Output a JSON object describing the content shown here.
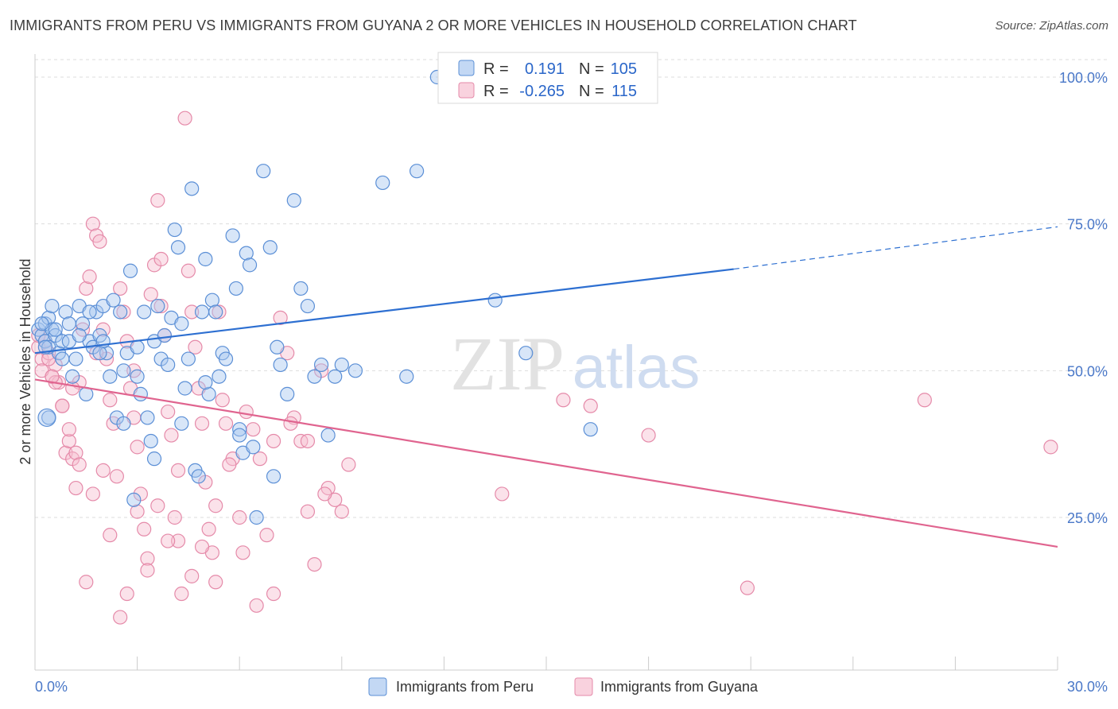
{
  "title": "IMMIGRANTS FROM PERU VS IMMIGRANTS FROM GUYANA 2 OR MORE VEHICLES IN HOUSEHOLD CORRELATION CHART",
  "source": "Source: ZipAtlas.com",
  "watermark": {
    "zip": "ZIP",
    "atlas": "atlas"
  },
  "colors": {
    "peru_fill": "#a9c7ef",
    "peru_stroke": "#5b8fd6",
    "peru_line": "#2d6fd1",
    "guyana_fill": "#f6bfd0",
    "guyana_stroke": "#e58aa9",
    "guyana_line": "#e0648f",
    "grid": "#dddddd",
    "tick_text": "#4a78c8"
  },
  "legend": {
    "rows": [
      {
        "r_label": "R =",
        "r_value": "0.191",
        "n_label": "N =",
        "n_value": "105",
        "series": "peru"
      },
      {
        "r_label": "R =",
        "r_value": "-0.265",
        "n_label": "N =",
        "n_value": "115",
        "series": "guyana"
      }
    ]
  },
  "chart_data": {
    "type": "scatter",
    "title": "IMMIGRANTS FROM PERU VS IMMIGRANTS FROM GUYANA 2 OR MORE VEHICLES IN HOUSEHOLD CORRELATION CHART",
    "xlabel": "",
    "ylabel": "2 or more Vehicles in Household",
    "xlim": [
      0,
      30
    ],
    "ylim": [
      0,
      105
    ],
    "x_tick_labels": [
      "0.0%",
      "30.0%"
    ],
    "y_ticks": [
      25,
      50,
      75,
      100
    ],
    "y_tick_labels": [
      "25.0%",
      "50.0%",
      "75.0%",
      "100.0%"
    ],
    "grid": true,
    "legend_placement": "top-center",
    "series": [
      {
        "name": "Immigrants from Peru",
        "color": "#5b8fd6",
        "trend": {
          "x0": 0,
          "y0": 53.0,
          "x1": 20.5,
          "y1": 67.3,
          "dashed_to_x": 30,
          "dashed_to_y": 74.5
        },
        "points": [
          [
            0.1,
            57
          ],
          [
            0.2,
            56
          ],
          [
            0.3,
            58
          ],
          [
            0.3,
            55
          ],
          [
            0.4,
            54
          ],
          [
            0.4,
            59
          ],
          [
            0.5,
            61
          ],
          [
            0.5,
            57
          ],
          [
            0.6,
            56
          ],
          [
            0.7,
            53
          ],
          [
            0.8,
            55
          ],
          [
            0.9,
            60
          ],
          [
            1.0,
            58
          ],
          [
            1.1,
            49
          ],
          [
            1.2,
            52
          ],
          [
            1.3,
            61
          ],
          [
            1.4,
            58
          ],
          [
            1.5,
            46
          ],
          [
            1.6,
            55
          ],
          [
            1.7,
            54
          ],
          [
            1.8,
            60
          ],
          [
            1.9,
            56
          ],
          [
            2.0,
            61
          ],
          [
            2.1,
            53
          ],
          [
            2.2,
            49
          ],
          [
            2.3,
            62
          ],
          [
            2.4,
            42
          ],
          [
            2.5,
            60
          ],
          [
            2.6,
            50
          ],
          [
            2.7,
            53
          ],
          [
            2.8,
            67
          ],
          [
            2.9,
            28
          ],
          [
            3.0,
            54
          ],
          [
            3.1,
            46
          ],
          [
            3.2,
            60
          ],
          [
            3.3,
            42
          ],
          [
            3.4,
            38
          ],
          [
            3.5,
            55
          ],
          [
            3.6,
            61
          ],
          [
            3.7,
            52
          ],
          [
            3.8,
            56
          ],
          [
            3.9,
            51
          ],
          [
            4.0,
            59
          ],
          [
            4.1,
            74
          ],
          [
            4.2,
            71
          ],
          [
            4.3,
            58
          ],
          [
            4.4,
            47
          ],
          [
            4.5,
            52
          ],
          [
            4.6,
            81
          ],
          [
            4.7,
            33
          ],
          [
            4.8,
            32
          ],
          [
            4.9,
            60
          ],
          [
            5.0,
            69
          ],
          [
            5.1,
            46
          ],
          [
            5.2,
            62
          ],
          [
            5.3,
            60
          ],
          [
            5.4,
            49
          ],
          [
            5.5,
            53
          ],
          [
            5.6,
            52
          ],
          [
            5.8,
            73
          ],
          [
            5.9,
            64
          ],
          [
            6.0,
            40
          ],
          [
            6.1,
            36
          ],
          [
            6.2,
            70
          ],
          [
            6.3,
            68
          ],
          [
            6.4,
            37
          ],
          [
            6.5,
            25
          ],
          [
            6.7,
            84
          ],
          [
            6.9,
            71
          ],
          [
            7.1,
            54
          ],
          [
            7.2,
            51
          ],
          [
            7.4,
            46
          ],
          [
            7.6,
            79
          ],
          [
            7.8,
            64
          ],
          [
            8.0,
            61
          ],
          [
            8.2,
            49
          ],
          [
            8.4,
            51
          ],
          [
            8.6,
            39
          ],
          [
            8.8,
            49
          ],
          [
            9.0,
            51
          ],
          [
            9.4,
            50
          ],
          [
            10.2,
            82
          ],
          [
            10.9,
            49
          ],
          [
            11.2,
            84
          ],
          [
            11.8,
            100
          ],
          [
            13.5,
            62
          ],
          [
            14.4,
            53
          ],
          [
            16.3,
            40
          ],
          [
            0.4,
            42
          ],
          [
            0.2,
            58
          ],
          [
            0.6,
            57
          ],
          [
            0.8,
            52
          ],
          [
            1.0,
            55
          ],
          [
            1.3,
            56
          ],
          [
            1.6,
            60
          ],
          [
            2.0,
            55
          ],
          [
            2.6,
            41
          ],
          [
            3.0,
            49
          ],
          [
            3.5,
            35
          ],
          [
            4.3,
            41
          ],
          [
            5.0,
            48
          ],
          [
            6.0,
            39
          ],
          [
            7.0,
            32
          ],
          [
            0.3,
            54
          ],
          [
            1.9,
            53
          ]
        ]
      },
      {
        "name": "Immigrants from Guyana",
        "color": "#e58aa9",
        "trend": {
          "x0": 0,
          "y0": 48.5,
          "x1": 30,
          "y1": 20.0
        },
        "points": [
          [
            0.1,
            54
          ],
          [
            0.2,
            52
          ],
          [
            0.3,
            55
          ],
          [
            0.4,
            53
          ],
          [
            0.5,
            49
          ],
          [
            0.6,
            51
          ],
          [
            0.7,
            48
          ],
          [
            0.8,
            44
          ],
          [
            0.9,
            36
          ],
          [
            1.0,
            38
          ],
          [
            1.1,
            35
          ],
          [
            1.2,
            30
          ],
          [
            1.3,
            48
          ],
          [
            1.4,
            57
          ],
          [
            1.5,
            64
          ],
          [
            1.6,
            66
          ],
          [
            1.7,
            75
          ],
          [
            1.8,
            73
          ],
          [
            1.9,
            72
          ],
          [
            2.0,
            57
          ],
          [
            2.1,
            52
          ],
          [
            2.2,
            45
          ],
          [
            2.3,
            41
          ],
          [
            2.4,
            32
          ],
          [
            2.5,
            64
          ],
          [
            2.6,
            60
          ],
          [
            2.7,
            55
          ],
          [
            2.8,
            47
          ],
          [
            2.9,
            42
          ],
          [
            3.0,
            37
          ],
          [
            3.1,
            29
          ],
          [
            3.2,
            23
          ],
          [
            3.3,
            18
          ],
          [
            3.4,
            63
          ],
          [
            3.5,
            68
          ],
          [
            3.6,
            79
          ],
          [
            3.7,
            61
          ],
          [
            3.8,
            56
          ],
          [
            3.9,
            43
          ],
          [
            4.0,
            39
          ],
          [
            4.1,
            25
          ],
          [
            4.2,
            21
          ],
          [
            4.3,
            12
          ],
          [
            4.4,
            93
          ],
          [
            4.5,
            67
          ],
          [
            4.6,
            60
          ],
          [
            4.7,
            54
          ],
          [
            4.8,
            47
          ],
          [
            4.9,
            41
          ],
          [
            5.0,
            31
          ],
          [
            5.1,
            23
          ],
          [
            5.2,
            19
          ],
          [
            5.3,
            14
          ],
          [
            5.4,
            60
          ],
          [
            5.5,
            45
          ],
          [
            5.6,
            41
          ],
          [
            5.8,
            35
          ],
          [
            6.0,
            25
          ],
          [
            6.2,
            43
          ],
          [
            6.4,
            40
          ],
          [
            6.6,
            35
          ],
          [
            6.8,
            22
          ],
          [
            7.0,
            12
          ],
          [
            7.2,
            59
          ],
          [
            7.4,
            53
          ],
          [
            7.6,
            42
          ],
          [
            7.8,
            38
          ],
          [
            8.0,
            26
          ],
          [
            8.2,
            17
          ],
          [
            8.4,
            50
          ],
          [
            8.6,
            30
          ],
          [
            8.8,
            28
          ],
          [
            9.0,
            26
          ],
          [
            9.2,
            34
          ],
          [
            15.5,
            45
          ],
          [
            16.3,
            44
          ],
          [
            18.0,
            39
          ],
          [
            20.9,
            13
          ],
          [
            26.1,
            45
          ],
          [
            29.8,
            37
          ],
          [
            0.1,
            56
          ],
          [
            0.2,
            50
          ],
          [
            0.4,
            52
          ],
          [
            0.6,
            48
          ],
          [
            0.8,
            44
          ],
          [
            1.0,
            40
          ],
          [
            1.2,
            36
          ],
          [
            1.5,
            14
          ],
          [
            1.7,
            29
          ],
          [
            2.0,
            33
          ],
          [
            2.2,
            22
          ],
          [
            2.5,
            8
          ],
          [
            2.7,
            12
          ],
          [
            3.0,
            26
          ],
          [
            3.3,
            16
          ],
          [
            3.6,
            27
          ],
          [
            3.9,
            21
          ],
          [
            4.2,
            33
          ],
          [
            4.6,
            15
          ],
          [
            4.9,
            20
          ],
          [
            5.3,
            27
          ],
          [
            5.7,
            34
          ],
          [
            6.1,
            19
          ],
          [
            6.5,
            10
          ],
          [
            7.0,
            38
          ],
          [
            7.5,
            41
          ],
          [
            8.0,
            38
          ],
          [
            8.5,
            29
          ],
          [
            13.7,
            29
          ],
          [
            1.1,
            47
          ],
          [
            1.3,
            34
          ],
          [
            2.9,
            50
          ],
          [
            3.7,
            69
          ],
          [
            0.5,
            49
          ],
          [
            1.8,
            53
          ]
        ]
      }
    ]
  },
  "bottom_legend": [
    {
      "label": "Immigrants from Peru",
      "series": "peru"
    },
    {
      "label": "Immigrants from Guyana",
      "series": "guyana"
    }
  ]
}
